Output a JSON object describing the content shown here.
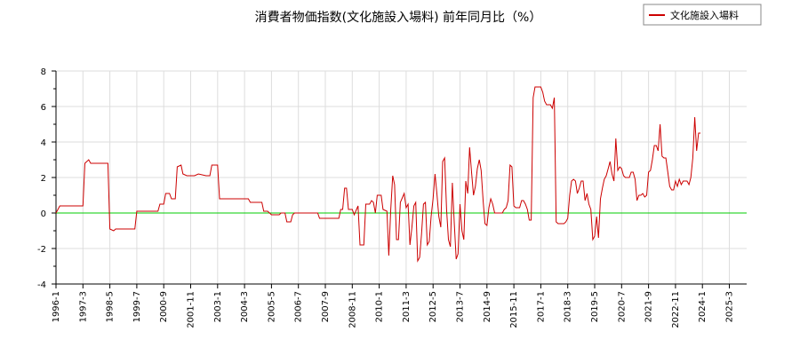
{
  "chart_data": {
    "type": "line",
    "title": "消費者物価指数(文化施設入場料) 前年同月比（%）",
    "xlabel": "",
    "ylabel": "",
    "ylim": [
      -4,
      8
    ],
    "y_ticks": [
      -4,
      -2,
      0,
      2,
      4,
      6,
      8
    ],
    "x_range": [
      "1996-01",
      "2025-12"
    ],
    "x_ticks": [
      "1996-1",
      "1997-3",
      "1998-5",
      "1999-7",
      "2000-9",
      "2001-11",
      "2003-1",
      "2004-3",
      "2005-5",
      "2006-7",
      "2007-9",
      "2008-11",
      "2010-1",
      "2011-3",
      "2012-5",
      "2013-7",
      "2014-9",
      "2015-11",
      "2017-1",
      "2018-3",
      "2019-5",
      "2020-7",
      "2021-9",
      "2022-11",
      "2024-1",
      "2025-3"
    ],
    "grid": true,
    "legend_position": "top-right",
    "zero_line_color": "#00cc00",
    "series": [
      {
        "name": "文化施設入場料",
        "color": "#cc0000",
        "points": [
          [
            "1996-01",
            0.0
          ],
          [
            "1996-03",
            0.4
          ],
          [
            "1997-03",
            0.4
          ],
          [
            "1997-04",
            2.8
          ],
          [
            "1997-06",
            3.0
          ],
          [
            "1997-07",
            2.8
          ],
          [
            "1998-04",
            2.8
          ],
          [
            "1998-05",
            -0.9
          ],
          [
            "1998-07",
            -1.0
          ],
          [
            "1998-08",
            -0.9
          ],
          [
            "1999-06",
            -0.9
          ],
          [
            "1999-07",
            0.1
          ],
          [
            "2000-06",
            0.1
          ],
          [
            "2000-07",
            0.5
          ],
          [
            "2000-09",
            0.5
          ],
          [
            "2000-10",
            1.1
          ],
          [
            "2000-12",
            1.1
          ],
          [
            "2001-01",
            0.8
          ],
          [
            "2001-03",
            0.8
          ],
          [
            "2001-04",
            2.6
          ],
          [
            "2001-06",
            2.7
          ],
          [
            "2001-07",
            2.2
          ],
          [
            "2001-09",
            2.1
          ],
          [
            "2002-01",
            2.1
          ],
          [
            "2002-03",
            2.2
          ],
          [
            "2002-07",
            2.1
          ],
          [
            "2002-09",
            2.1
          ],
          [
            "2002-10",
            2.7
          ],
          [
            "2003-01",
            2.7
          ],
          [
            "2003-02",
            0.8
          ],
          [
            "2004-05",
            0.8
          ],
          [
            "2004-06",
            0.6
          ],
          [
            "2004-12",
            0.6
          ],
          [
            "2005-01",
            0.1
          ],
          [
            "2005-03",
            0.1
          ],
          [
            "2005-05",
            -0.1
          ],
          [
            "2005-09",
            -0.1
          ],
          [
            "2005-10",
            0.0
          ],
          [
            "2005-12",
            0.0
          ],
          [
            "2006-01",
            -0.5
          ],
          [
            "2006-03",
            -0.5
          ],
          [
            "2006-04",
            -0.1
          ],
          [
            "2006-05",
            0.0
          ],
          [
            "2007-05",
            0.0
          ],
          [
            "2007-06",
            -0.3
          ],
          [
            "2008-01",
            -0.3
          ],
          [
            "2008-04",
            -0.3
          ],
          [
            "2008-05",
            0.2
          ],
          [
            "2008-06",
            0.2
          ],
          [
            "2008-07",
            1.4
          ],
          [
            "2008-08",
            1.4
          ],
          [
            "2008-09",
            0.2
          ],
          [
            "2008-11",
            0.2
          ],
          [
            "2008-12",
            -0.1
          ],
          [
            "2009-02",
            0.4
          ],
          [
            "2009-03",
            -1.8
          ],
          [
            "2009-05",
            -1.8
          ],
          [
            "2009-06",
            0.5
          ],
          [
            "2009-08",
            0.5
          ],
          [
            "2009-09",
            0.7
          ],
          [
            "2009-10",
            0.6
          ],
          [
            "2009-11",
            0.0
          ],
          [
            "2009-12",
            1.0
          ],
          [
            "2010-02",
            1.0
          ],
          [
            "2010-03",
            0.2
          ],
          [
            "2010-05",
            0.1
          ],
          [
            "2010-06",
            -2.4
          ],
          [
            "2010-07",
            0.2
          ],
          [
            "2010-08",
            2.1
          ],
          [
            "2010-09",
            1.6
          ],
          [
            "2010-10",
            -1.5
          ],
          [
            "2010-11",
            -1.5
          ],
          [
            "2010-12",
            0.6
          ],
          [
            "2011-02",
            1.1
          ],
          [
            "2011-03",
            0.3
          ],
          [
            "2011-04",
            0.5
          ],
          [
            "2011-05",
            -1.8
          ],
          [
            "2011-06",
            -0.8
          ],
          [
            "2011-07",
            0.4
          ],
          [
            "2011-08",
            0.6
          ],
          [
            "2011-09",
            -2.7
          ],
          [
            "2011-10",
            -2.5
          ],
          [
            "2011-11",
            -1.2
          ],
          [
            "2011-12",
            0.5
          ],
          [
            "2012-01",
            0.6
          ],
          [
            "2012-02",
            -1.8
          ],
          [
            "2012-03",
            -1.6
          ],
          [
            "2012-04",
            -0.2
          ],
          [
            "2012-05",
            0.8
          ],
          [
            "2012-06",
            2.2
          ],
          [
            "2012-07",
            1.1
          ],
          [
            "2012-08",
            -0.2
          ],
          [
            "2012-09",
            -0.8
          ],
          [
            "2012-10",
            2.9
          ],
          [
            "2012-11",
            3.1
          ],
          [
            "2012-12",
            0.2
          ],
          [
            "2013-01",
            -1.5
          ],
          [
            "2013-02",
            -1.9
          ],
          [
            "2013-03",
            1.7
          ],
          [
            "2013-04",
            -0.5
          ],
          [
            "2013-05",
            -2.6
          ],
          [
            "2013-06",
            -2.3
          ],
          [
            "2013-07",
            0.5
          ],
          [
            "2013-08",
            -1.0
          ],
          [
            "2013-09",
            -1.5
          ],
          [
            "2013-10",
            1.8
          ],
          [
            "2013-11",
            1.1
          ],
          [
            "2013-12",
            3.7
          ],
          [
            "2014-01",
            2.3
          ],
          [
            "2014-02",
            1.0
          ],
          [
            "2014-03",
            1.5
          ],
          [
            "2014-04",
            2.5
          ],
          [
            "2014-05",
            3.0
          ],
          [
            "2014-06",
            2.4
          ],
          [
            "2014-07",
            0.7
          ],
          [
            "2014-08",
            -0.6
          ],
          [
            "2014-09",
            -0.7
          ],
          [
            "2014-10",
            0.3
          ],
          [
            "2014-11",
            0.8
          ],
          [
            "2014-12",
            0.5
          ],
          [
            "2015-01",
            0.0
          ],
          [
            "2015-05",
            0.0
          ],
          [
            "2015-06",
            0.2
          ],
          [
            "2015-07",
            0.3
          ],
          [
            "2015-08",
            0.7
          ],
          [
            "2015-09",
            2.7
          ],
          [
            "2015-10",
            2.6
          ],
          [
            "2015-11",
            0.4
          ],
          [
            "2015-12",
            0.3
          ],
          [
            "2016-02",
            0.3
          ],
          [
            "2016-03",
            0.7
          ],
          [
            "2016-04",
            0.7
          ],
          [
            "2016-05",
            0.5
          ],
          [
            "2016-06",
            0.2
          ],
          [
            "2016-07",
            -0.4
          ],
          [
            "2016-08",
            -0.4
          ],
          [
            "2016-09",
            6.5
          ],
          [
            "2016-10",
            7.1
          ],
          [
            "2017-01",
            7.1
          ],
          [
            "2017-02",
            6.8
          ],
          [
            "2017-03",
            6.3
          ],
          [
            "2017-04",
            6.1
          ],
          [
            "2017-06",
            6.1
          ],
          [
            "2017-07",
            5.9
          ],
          [
            "2017-08",
            6.5
          ],
          [
            "2017-09",
            -0.5
          ],
          [
            "2017-10",
            -0.6
          ],
          [
            "2018-01",
            -0.6
          ],
          [
            "2018-02",
            -0.5
          ],
          [
            "2018-03",
            -0.3
          ],
          [
            "2018-04",
            1.0
          ],
          [
            "2018-05",
            1.8
          ],
          [
            "2018-06",
            1.9
          ],
          [
            "2018-07",
            1.8
          ],
          [
            "2018-08",
            1.1
          ],
          [
            "2018-09",
            1.4
          ],
          [
            "2018-10",
            1.8
          ],
          [
            "2018-11",
            1.8
          ],
          [
            "2018-12",
            0.7
          ],
          [
            "2019-01",
            1.1
          ],
          [
            "2019-02",
            0.5
          ],
          [
            "2019-03",
            0.2
          ],
          [
            "2019-04",
            -1.5
          ],
          [
            "2019-05",
            -1.3
          ],
          [
            "2019-06",
            -0.2
          ],
          [
            "2019-07",
            -1.4
          ],
          [
            "2019-08",
            0.8
          ],
          [
            "2019-09",
            1.4
          ],
          [
            "2019-10",
            1.9
          ],
          [
            "2019-11",
            2.1
          ],
          [
            "2019-12",
            2.5
          ],
          [
            "2020-01",
            2.9
          ],
          [
            "2020-02",
            2.2
          ],
          [
            "2020-03",
            1.8
          ],
          [
            "2020-04",
            4.2
          ],
          [
            "2020-05",
            2.4
          ],
          [
            "2020-06",
            2.6
          ],
          [
            "2020-07",
            2.5
          ],
          [
            "2020-08",
            2.1
          ],
          [
            "2020-09",
            2.0
          ],
          [
            "2020-11",
            2.0
          ],
          [
            "2020-12",
            2.3
          ],
          [
            "2021-01",
            2.3
          ],
          [
            "2021-02",
            1.9
          ],
          [
            "2021-03",
            0.7
          ],
          [
            "2021-04",
            1.0
          ],
          [
            "2021-05",
            1.0
          ],
          [
            "2021-06",
            1.1
          ],
          [
            "2021-07",
            0.9
          ],
          [
            "2021-08",
            1.0
          ],
          [
            "2021-09",
            2.3
          ],
          [
            "2021-10",
            2.4
          ],
          [
            "2021-11",
            3.0
          ],
          [
            "2021-12",
            3.8
          ],
          [
            "2022-01",
            3.8
          ],
          [
            "2022-02",
            3.5
          ],
          [
            "2022-03",
            5.0
          ],
          [
            "2022-04",
            3.2
          ],
          [
            "2022-05",
            3.1
          ],
          [
            "2022-06",
            3.1
          ],
          [
            "2022-07",
            2.3
          ],
          [
            "2022-08",
            1.5
          ],
          [
            "2022-09",
            1.3
          ],
          [
            "2022-10",
            1.3
          ],
          [
            "2022-11",
            1.8
          ],
          [
            "2022-12",
            1.5
          ],
          [
            "2023-01",
            1.9
          ],
          [
            "2023-02",
            1.6
          ],
          [
            "2023-03",
            1.8
          ],
          [
            "2023-05",
            1.8
          ],
          [
            "2023-06",
            1.6
          ],
          [
            "2023-07",
            2.0
          ],
          [
            "2023-08",
            3.1
          ],
          [
            "2023-09",
            5.4
          ],
          [
            "2023-10",
            3.5
          ],
          [
            "2023-11",
            4.5
          ],
          [
            "2023-12",
            4.5
          ]
        ]
      }
    ]
  }
}
